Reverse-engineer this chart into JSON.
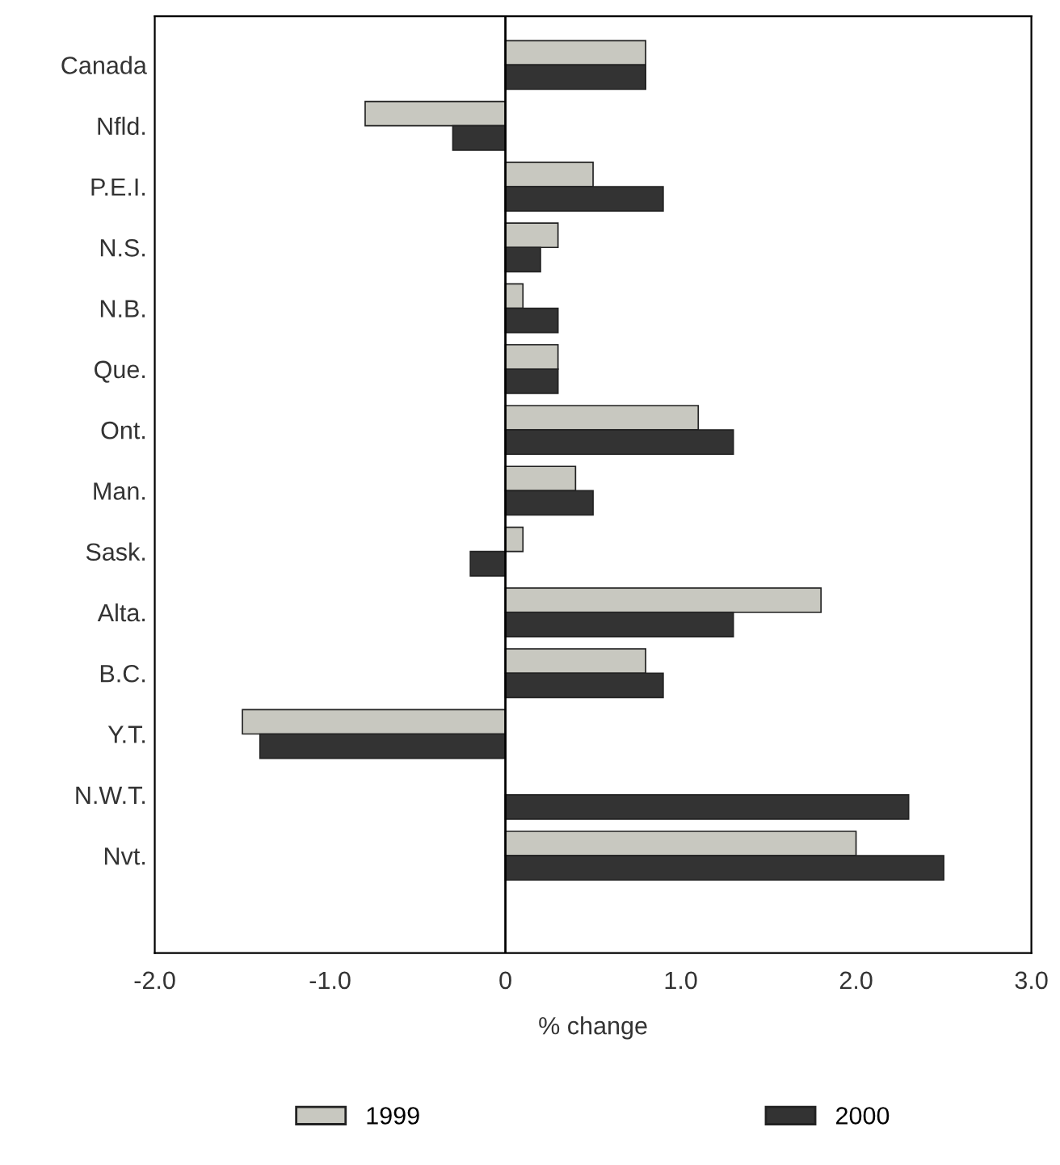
{
  "chart_data": {
    "type": "bar",
    "orientation": "horizontal",
    "xlabel": "% change",
    "categories": [
      "Canada",
      "Nfld.",
      "P.E.I.",
      "N.S.",
      "N.B.",
      "Que.",
      "Ont.",
      "Man.",
      "Sask.",
      "Alta.",
      "B.C.",
      "Y.T.",
      "N.W.T.",
      "Nvt."
    ],
    "series": [
      {
        "name": "1999",
        "color": "#c8c8c0",
        "values": [
          0.8,
          -0.8,
          0.5,
          0.3,
          0.1,
          0.3,
          1.1,
          0.4,
          0.1,
          1.8,
          0.8,
          -1.5,
          null,
          2.0
        ]
      },
      {
        "name": "2000",
        "color": "#333333",
        "values": [
          0.8,
          -0.3,
          0.9,
          0.2,
          0.3,
          0.3,
          1.3,
          0.5,
          -0.2,
          1.3,
          0.9,
          -1.4,
          2.3,
          2.5
        ]
      }
    ],
    "xlim": [
      -2,
      3
    ],
    "xticks": [
      {
        "value": -2,
        "label": "-2.0"
      },
      {
        "value": -1,
        "label": "-1.0"
      },
      0,
      {
        "value": 1,
        "label": "1.0"
      },
      {
        "value": 2,
        "label": "2.0"
      },
      {
        "value": 3,
        "label": "3.0"
      }
    ],
    "ref_lines": [
      {
        "axis": "x",
        "value": 0,
        "color": "#000000"
      }
    ],
    "grid": false,
    "legend": "bottom"
  }
}
